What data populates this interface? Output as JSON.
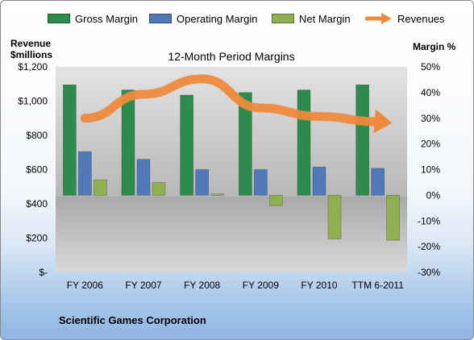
{
  "colors": {
    "gross_margin": "#2e8b4e",
    "operating_margin": "#4f79b8",
    "net_margin": "#8fb050",
    "revenues": "#ee8a3c"
  },
  "legend": [
    {
      "name": "Gross Margin",
      "icon": "bar-swatch"
    },
    {
      "name": "Operating Margin",
      "icon": "bar-swatch"
    },
    {
      "name": "Net Margin",
      "icon": "bar-swatch"
    },
    {
      "name": "Revenues",
      "icon": "arrow-swatch"
    }
  ],
  "left_axis_title": {
    "line1": "Revenue",
    "line2": "$millions"
  },
  "right_axis_title": "Margin %",
  "footer": "Scientific Games Corporation",
  "chart_data": {
    "type": "bar",
    "title": "12-Month Period Margins",
    "categories": [
      "FY 2006",
      "FY 2007",
      "FY 2008",
      "FY 2009",
      "FY 2010",
      "TTM 6-2011"
    ],
    "series": [
      {
        "name": "Gross Margin",
        "axis": "right",
        "unit": "%",
        "values": [
          43,
          41,
          39,
          40,
          41,
          43
        ]
      },
      {
        "name": "Operating Margin",
        "axis": "right",
        "unit": "%",
        "values": [
          17,
          14,
          10,
          10,
          11,
          10.5
        ]
      },
      {
        "name": "Net Margin",
        "axis": "right",
        "unit": "%",
        "values": [
          6,
          5,
          0.5,
          -4,
          -17,
          -17.5
        ]
      },
      {
        "name": "Revenues",
        "axis": "left",
        "type": "line-arrow",
        "unit": "$millions",
        "values": [
          900,
          1040,
          1130,
          960,
          910,
          880
        ]
      }
    ],
    "left_axis": {
      "min": 0,
      "max": 1200,
      "step": 200,
      "tick_labels": [
        "$-",
        "$200",
        "$400",
        "$600",
        "$800",
        "$1,000",
        "$1,200"
      ]
    },
    "right_axis": {
      "min": -30,
      "max": 50,
      "step": 10,
      "tick_labels": [
        "-30%",
        "-20%",
        "-10%",
        "0%",
        "10%",
        "20%",
        "30%",
        "40%",
        "50%"
      ]
    },
    "legend_position": "top",
    "grid": false
  }
}
